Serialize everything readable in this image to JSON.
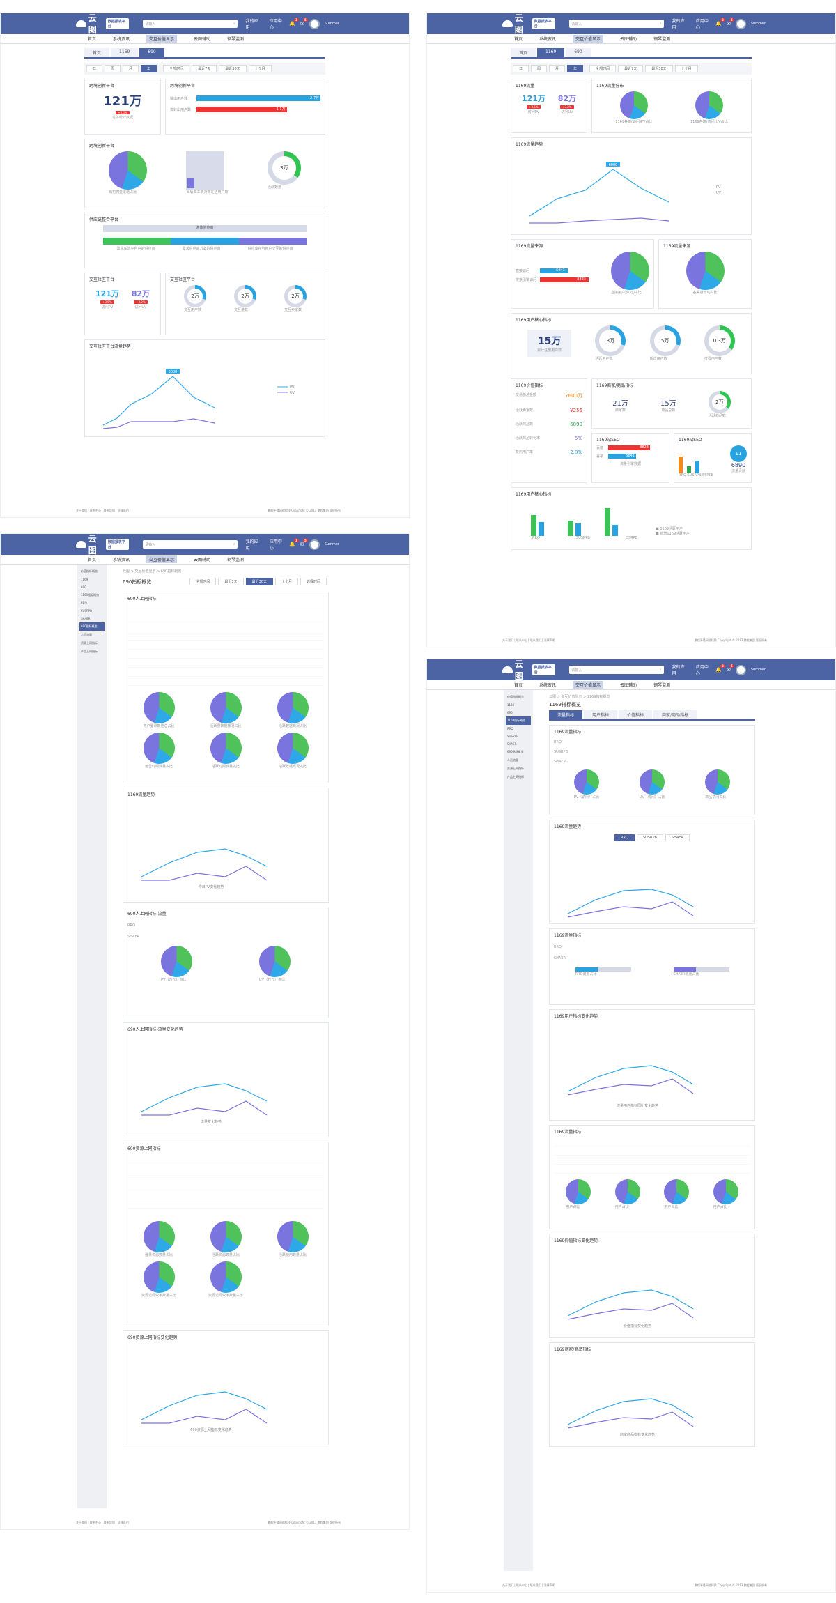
{
  "app": {
    "logo": "云图",
    "badge": "数据报表平台",
    "search_placeholder": "请输入",
    "links": [
      "我的应用",
      "应用中心"
    ],
    "user": "Summer",
    "tip_counts": [
      "3",
      "5"
    ]
  },
  "nav": [
    "首页",
    "系统资讯",
    "交互价值显示",
    "云图辅助",
    "钢琴监测"
  ],
  "footer": {
    "left": [
      "关于我们",
      "联系中心",
      "联系我们",
      "法律声明"
    ],
    "right": "鹏程平隆网络科技 Copyright © 2013 鹏程集团 版权所有"
  },
  "p1": {
    "tabs": [
      "首页",
      "1169",
      "690"
    ],
    "periods": [
      "日",
      "周",
      "月",
      "年"
    ],
    "filters": [
      "全部时间",
      "最近7天",
      "最近30天",
      "上个月"
    ],
    "c1": {
      "title": "跨境创新平台",
      "value": "121万",
      "badge": "+3.5%",
      "note": "总体统计数据"
    },
    "c2": {
      "title": "跨境创新平台",
      "bars": [
        {
          "label": "输出用户数",
          "value": "2.7万"
        },
        {
          "label": "流转出用户数",
          "value": "1.1万"
        }
      ]
    },
    "c3": {
      "title": "跨境创新平台",
      "captions": [
        "机构佣金渠道占比",
        "出版单工卖对数在活用户数",
        "活跃数量"
      ],
      "ring": "3万"
    },
    "c4": {
      "title": "供应链整合平台",
      "top": "总体供应商",
      "labels": [
        "需求车流平台中的供应商",
        "需求供应商方案的供应商",
        "供应库存与用户交互的供应商"
      ]
    },
    "c5": {
      "title": "交互社区平台",
      "a": "121万",
      "b": "82万",
      "ba": "+3.5%",
      "bb": "+3.2%",
      "la": "访问PV",
      "lb": "访问UV"
    },
    "c6": {
      "title": "交互社区平台",
      "rings": [
        "2万",
        "2万",
        "2万"
      ],
      "labels": [
        "交互用户数",
        "交互量数",
        "交互卖家数"
      ]
    },
    "c7": {
      "title": "交互社区平台流量趋势",
      "yticks": [
        "2000",
        "1800",
        "1600",
        "1400",
        "1200",
        "1000",
        "800",
        "600",
        "400",
        "200",
        "0"
      ],
      "xticks": [
        "1月",
        "2月",
        "3月",
        "4月",
        "5月",
        "6月",
        "7月"
      ],
      "peak": "3000",
      "legend": [
        "PV",
        "UV"
      ]
    }
  },
  "p2": {
    "tabs": [
      "首页",
      "1169",
      "690"
    ],
    "periods": [
      "日",
      "周",
      "月",
      "年"
    ],
    "filters": [
      "全部时间",
      "最近7天",
      "最近30天",
      "上个月"
    ],
    "c1": {
      "title": "1169流量",
      "a": "121万",
      "b": "82万",
      "ba": "+3.5%",
      "bb": "+3.2%",
      "la": "访问PV",
      "lb": "访问UV"
    },
    "c2": {
      "title": "1169流量分布",
      "labels": [
        "1169各端(访问)PV占比",
        "1169各端(访问)UV占比"
      ]
    },
    "c3": {
      "title": "1169流量趋势",
      "peak": "6000",
      "legend": [
        "PV",
        "UV"
      ],
      "yticks": [
        "6000",
        "5000",
        "4000",
        "3000",
        "2000",
        "1000",
        "0"
      ],
      "xticks": [
        "1月",
        "2月",
        "3月",
        "4月",
        "5月",
        "6月"
      ]
    },
    "c4": {
      "title": "1169流量来源",
      "bars": [
        {
          "label": "直接访问",
          "value": "5841"
        },
        {
          "label": "搜索引擎访问",
          "value": "8823"
        }
      ],
      "pie_label": "直接用户数(万)占比"
    },
    "c5": {
      "title": "1169流量来源",
      "pie_label": "各渠道流动占比"
    },
    "c6": {
      "title": "1169用户核心指标",
      "big": "15万",
      "note": "累计注册用户数",
      "rings": [
        "3万",
        "5万",
        "0.3万"
      ],
      "labels": [
        "活跃用户数",
        "新增用户数",
        "付费用户数"
      ]
    },
    "c7": {
      "title": "1169价值指标",
      "items": [
        {
          "label": "交易额总金额",
          "value": "7600万"
        },
        {
          "label": "活跃卖家数",
          "value": "¥256"
        },
        {
          "label": "活跃商品数",
          "value": "6890"
        },
        {
          "label": "活跃商品转化率",
          "value": "5%"
        },
        {
          "label": "复购用户率",
          "value": "2.8%"
        }
      ]
    },
    "c8": {
      "title": "1169商家/商品指标",
      "a": "21万",
      "b": "15万",
      "ring": "2万",
      "la": "商家数",
      "lb": "商品总数",
      "lr": "活跃商品数"
    },
    "c9": {
      "title": "1169站SEO",
      "bars": [
        {
          "label": "百度",
          "value": "8823"
        },
        {
          "label": "谷歌",
          "value": "5841"
        }
      ],
      "note": "流量引擎数据"
    },
    "c10": {
      "title": "1169站SEO",
      "bars": [
        "RRQ",
        "SUSRPB",
        "SSRPB"
      ],
      "circle": "11",
      "value": "6890",
      "note": "流量贡献"
    },
    "c11": {
      "title": "1169用户核心指标",
      "groups": [
        "RRQ",
        "SUSRPB",
        "SSRPB"
      ],
      "legend": [
        "1169活跃用户",
        "新增1169活跃用户"
      ]
    }
  },
  "p3": {
    "breadcrumb": "云图 > 交互价值显示 > 690指标概览",
    "title": "690指标概览",
    "sidebar": [
      "价值指标概览",
      "1169",
      "690",
      "1169指标概览",
      "RRQ",
      "SUSRPB",
      "SHAER",
      "690指标概览",
      "人员流量",
      "资源上网指标",
      "产品上网指标"
    ],
    "filters": [
      "全部时间",
      "最近7天",
      "最近30天",
      "上个月",
      "选择时间"
    ],
    "s1": {
      "title": "690人上网指标",
      "pies": [
        "用户登录数量总占比",
        "活跃量数据概况占比",
        "活跃数据概况占比",
        "运营时间数量占比",
        "活跃时间数量占比",
        "活跃数据概况占比"
      ]
    },
    "s2": {
      "title": "1169流量趋势",
      "tabs": [
        "全部",
        "日周",
        "月度",
        "月年",
        "自定义",
        "固定",
        "其他"
      ],
      "caption": "今日PV变化趋势"
    },
    "s3": {
      "title": "690人上网指标-流量",
      "rows": [
        "RRQ",
        "SHAER"
      ],
      "pies": [
        "PV（万元）占比",
        "UV（万元）占比"
      ]
    },
    "s4": {
      "title": "690人上网指标-流量变化趋势",
      "caption": "流量变化趋势"
    },
    "s5": {
      "title": "690资源上网指标",
      "pies": [
        "登录资源数量占比",
        "活跃资源数量占比",
        "活跃使用数量占比",
        "资源访问效率数量占比",
        "资源访问效率数量占比"
      ]
    },
    "s6": {
      "title": "690资源上网指标变化趋势",
      "caption": "690资源上网指标变化趋势"
    }
  },
  "p4": {
    "breadcrumb": "云图 > 交互价值显示 > 1169指标概览",
    "title": "1169指标概览",
    "tabs": [
      "流量指标",
      "用户指标",
      "价值指标",
      "商家/商品指标"
    ],
    "s1": {
      "title": "1169流量指标",
      "rows": [
        "RRQ",
        "SUSRPB",
        "SHAER"
      ],
      "pies": [
        "PV（访问）占比",
        "UV（访问）占比",
        "商品访问占比"
      ]
    },
    "s2": {
      "title": "1169流量趋势",
      "tabs": [
        "RRQ",
        "SUSRPB",
        "SHAER"
      ]
    },
    "s3": {
      "title": "1169流量指标",
      "rows": [
        "RRQ",
        "SHAER"
      ],
      "labels": [
        "RRQ流量占比",
        "SHAER流量占比"
      ]
    },
    "s4": {
      "title": "1169用户指标变化趋势",
      "caption": "流量用户指标同比变化趋势"
    },
    "s5": {
      "title": "1169流量指标",
      "pies": [
        "用户占比",
        "用户占比",
        "用户占比",
        "用户占比"
      ]
    },
    "s6": {
      "title": "1169价值指标变化趋势",
      "caption": "价值指标变化趋势"
    },
    "s7": {
      "title": "1169商家/商品指标",
      "caption": "商家商品指标变化趋势"
    }
  }
}
